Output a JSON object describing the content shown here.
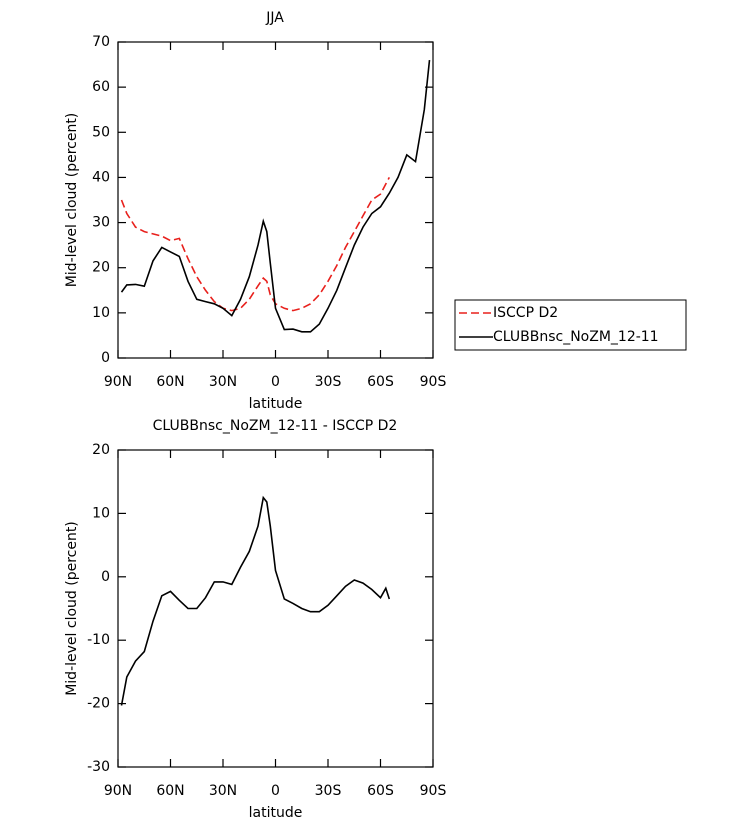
{
  "chart_data": [
    {
      "type": "line",
      "title": "JJA",
      "xlabel": "latitude",
      "ylabel": "Mid-level cloud (percent)",
      "xlim": [
        90,
        -90
      ],
      "xticks": [
        {
          "value": 90,
          "label": "90N"
        },
        {
          "value": 60,
          "label": "60N"
        },
        {
          "value": 30,
          "label": "30N"
        },
        0,
        {
          "value": -30,
          "label": "30S"
        },
        {
          "value": -60,
          "label": "60S"
        },
        {
          "value": -90,
          "label": "90S"
        }
      ],
      "ylim": [
        0,
        70
      ],
      "yticks": [
        0,
        10,
        20,
        30,
        40,
        50,
        60,
        70
      ],
      "legend": "right",
      "x": [
        88,
        85,
        80,
        75,
        70,
        65,
        60,
        55,
        50,
        45,
        40,
        35,
        30,
        25,
        20,
        15,
        10,
        7,
        5,
        3,
        0,
        -5,
        -10,
        -15,
        -20,
        -25,
        -30,
        -35,
        -40,
        -45,
        -50,
        -55,
        -60,
        -65,
        -70,
        -75,
        -80,
        -85,
        -88
      ],
      "series": [
        {
          "name": "ISCCP D2",
          "color": "#e8201c",
          "linestyle": "dashed",
          "values": [
            35,
            32,
            29,
            28,
            27.5,
            27,
            26,
            26.5,
            22,
            18,
            15,
            12.5,
            11,
            10.5,
            11,
            13,
            16,
            17.7,
            17,
            14,
            12,
            11,
            10.5,
            11,
            12,
            14,
            17,
            20.5,
            24.5,
            28,
            31.5,
            35,
            36.3,
            40,
            null,
            null,
            null,
            null,
            null
          ]
        },
        {
          "name": "CLUBBnsc_NoZM_12-11",
          "color": "#000000",
          "linestyle": "solid",
          "values": [
            14.6,
            16.2,
            16.3,
            15.9,
            21.5,
            24.5,
            23.5,
            22.5,
            17,
            13,
            12.5,
            12,
            11,
            9.4,
            13,
            18,
            25,
            30.3,
            28,
            21,
            11,
            6.3,
            6.4,
            5.8,
            5.8,
            7.5,
            11,
            15,
            20,
            25,
            29,
            32,
            33.5,
            36.5,
            40,
            45,
            43.5,
            55,
            66
          ]
        }
      ]
    },
    {
      "type": "line",
      "title": "CLUBBnsc_NoZM_12-11 - ISCCP D2",
      "xlabel": "latitude",
      "ylabel": "Mid-level cloud (percent)",
      "xlim": [
        90,
        -90
      ],
      "xticks": [
        {
          "value": 90,
          "label": "90N"
        },
        {
          "value": 60,
          "label": "60N"
        },
        {
          "value": 30,
          "label": "30N"
        },
        0,
        {
          "value": -30,
          "label": "30S"
        },
        {
          "value": -60,
          "label": "60S"
        },
        {
          "value": -90,
          "label": "90S"
        }
      ],
      "ylim": [
        -30,
        20
      ],
      "yticks": [
        -30,
        -20,
        -10,
        0,
        10,
        20
      ],
      "x": [
        88,
        85,
        80,
        75,
        70,
        65,
        60,
        55,
        50,
        45,
        40,
        35,
        30,
        25,
        20,
        15,
        10,
        7,
        5,
        3,
        0,
        -5,
        -10,
        -15,
        -20,
        -25,
        -30,
        -35,
        -40,
        -45,
        -50,
        -55,
        -60,
        -63,
        -65
      ],
      "series": [
        {
          "color": "#000000",
          "linestyle": "solid",
          "values": [
            -20.3,
            -15.8,
            -13.3,
            -11.8,
            -7,
            -3,
            -2.3,
            -3.7,
            -5,
            -5,
            -3.3,
            -0.8,
            -0.8,
            -1.2,
            1.5,
            4,
            8,
            12.5,
            11.8,
            8,
            1,
            -3.5,
            -4.2,
            -5,
            -5.5,
            -5.5,
            -4.5,
            -3,
            -1.5,
            -0.5,
            -1,
            -2,
            -3.3,
            -1.8,
            -3.5
          ]
        }
      ]
    }
  ]
}
